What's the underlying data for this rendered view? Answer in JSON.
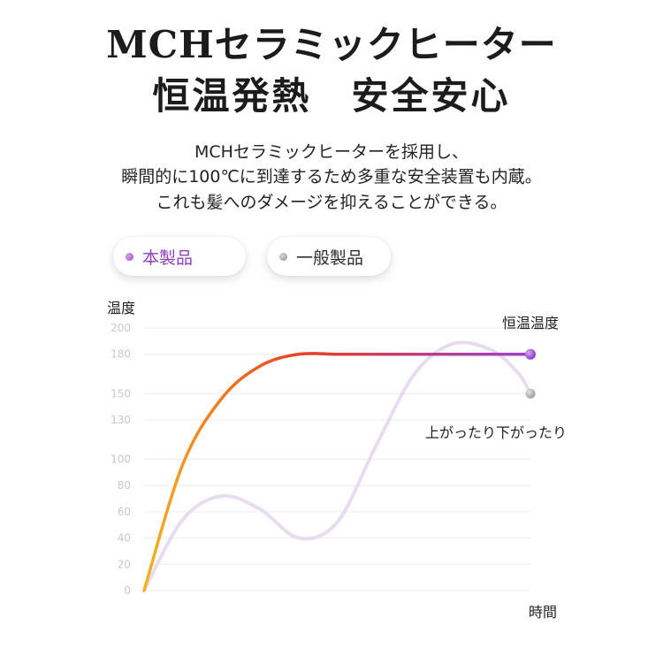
{
  "heading": {
    "line1": "MCHセラミックヒーター",
    "line2": "恒温発熱　安全安心"
  },
  "description": {
    "line1": "MCHセラミックヒーターを採用し、",
    "line2": "瞬間的に100℃に到達するため多重な安全装置も内蔵。",
    "line3": "これも髪へのダメージを抑えることができる。"
  },
  "legend": {
    "product": "本製品",
    "general": "一般製品"
  },
  "colors": {
    "product_start": "#f4b325",
    "product_mid": "#e8401f",
    "product_end": "#9a3fd6",
    "general": "#e8dcef",
    "grid": "#ececec"
  },
  "chart_data": {
    "type": "line",
    "ylabel": "温度",
    "xlabel": "時間",
    "ylim": [
      0,
      200
    ],
    "y_ticks": [
      0,
      20,
      40,
      60,
      80,
      100,
      130,
      150,
      180,
      200
    ],
    "grid": true,
    "legend_position": "top-left",
    "annotations": {
      "constant_temp": "恒温温度",
      "fluctuating": "上がったり下がったり"
    },
    "series": [
      {
        "name": "本製品",
        "x": [
          0,
          0.1,
          0.2,
          0.3,
          0.4,
          0.5,
          0.6,
          0.7,
          0.8,
          0.9,
          1.0
        ],
        "y": [
          0,
          96,
          146,
          171,
          180,
          180,
          180,
          180,
          180,
          180,
          180
        ]
      },
      {
        "name": "一般製品",
        "x": [
          0,
          0.1,
          0.2,
          0.3,
          0.4,
          0.5,
          0.6,
          0.7,
          0.8,
          0.9,
          0.97,
          1.0
        ],
        "y": [
          0,
          54,
          72,
          62,
          40,
          52,
          110,
          165,
          188,
          183,
          165,
          150
        ]
      }
    ]
  }
}
